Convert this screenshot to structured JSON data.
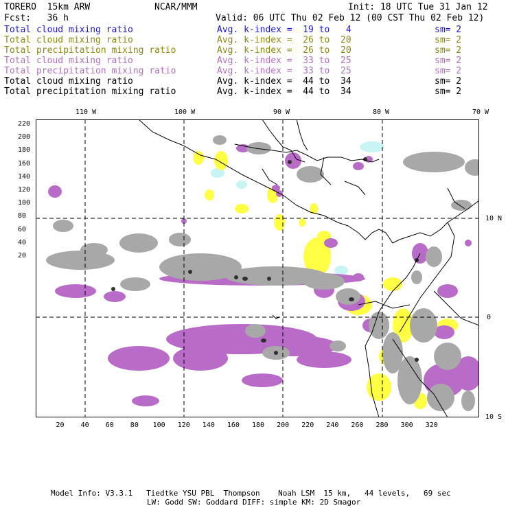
{
  "header": {
    "model": "TORERO  15km ARW",
    "org": "NCAR/MMM",
    "init": "Init: 18 UTC Tue 31 Jan 12",
    "fcst": "Fcst:   36 h",
    "valid": "Valid: 06 UTC Thu 02 Feb 12 (00 CST Thu 02 Feb 12)"
  },
  "legend": [
    {
      "field": "Total cloud mixing ratio",
      "index": "Avg. k-index =  19 to   4",
      "sm": "sm= 2",
      "color": "#1a1ad0"
    },
    {
      "field": "Total cloud mixing ratio",
      "index": "Avg. k-index =  26 to  20",
      "sm": "sm= 2",
      "color": "#8a8a10"
    },
    {
      "field": "Total precipitation mixing ratio",
      "index": "Avg. k-index =  26 to  20",
      "sm": "sm= 2",
      "color": "#8a8a10"
    },
    {
      "field": "Total cloud mixing ratio",
      "index": "Avg. k-index =  33 to  25",
      "sm": "sm= 2",
      "color": "#b070c0"
    },
    {
      "field": "Total precipitation mixing ratio",
      "index": "Avg. k-index =  33 to  25",
      "sm": "sm= 2",
      "color": "#b070c0"
    },
    {
      "field": "Total cloud mixing ratio",
      "index": "Avg. k-index =  44 to  34",
      "sm": "sm= 2",
      "color": "#000000"
    },
    {
      "field": "Total precipitation mixing ratio",
      "index": "Avg. k-index =  44 to  34",
      "sm": "sm= 2",
      "color": "#000000"
    }
  ],
  "axes": {
    "lon_labels": [
      "110 W",
      "100 W",
      "90 W",
      "80 W",
      "70 W"
    ],
    "lat_labels": [
      "10 N",
      "0",
      "10 S"
    ],
    "y_ticks": [
      "220",
      "200",
      "180",
      "160",
      "140",
      "120",
      "100",
      "80",
      "60",
      "40",
      "20"
    ],
    "x_ticks": [
      "20",
      "40",
      "60",
      "80",
      "100",
      "120",
      "140",
      "160",
      "180",
      "200",
      "220",
      "240",
      "260",
      "280",
      "300",
      "320"
    ]
  },
  "footer": {
    "line1": "Model Info: V3.3.1   Tiedtke YSU PBL  Thompson    Noah LSM  15 km,   44 levels,   69 sec",
    "line2": "LW: Godd SW: Goddard DIFF: simple KM: 2D Smagor"
  },
  "colors": {
    "gray": "#a8a8a8",
    "dark": "#303030",
    "purple": "#b86cc8",
    "yellow": "#ffff44",
    "cyan": "#c8f4f4"
  }
}
